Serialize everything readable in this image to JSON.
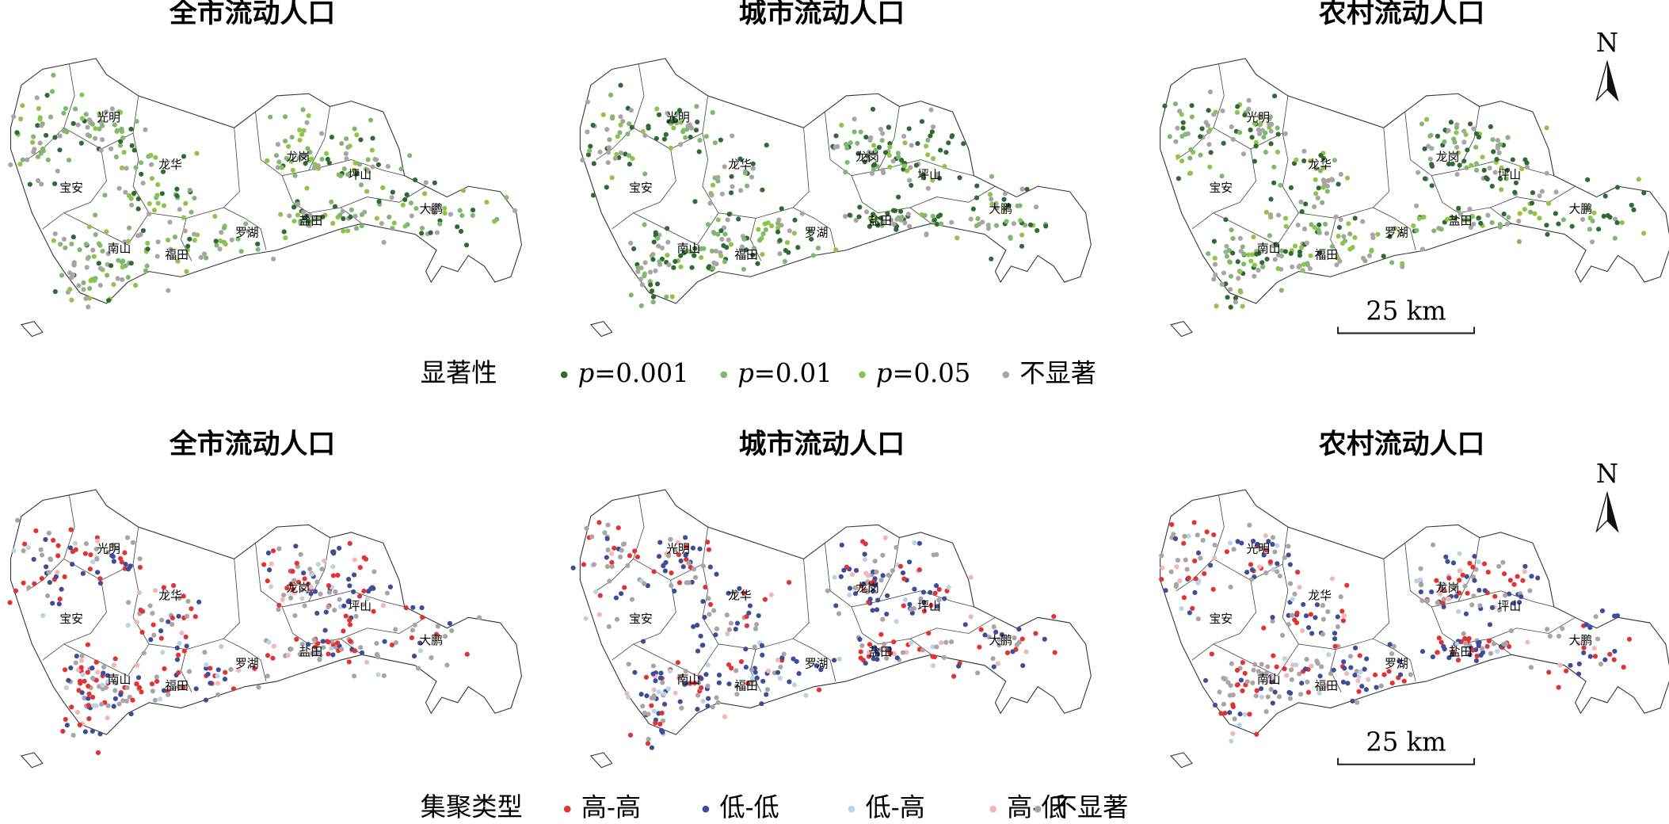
{
  "rows": [
    {
      "maps": [
        {
          "title": "全市流动人口"
        },
        {
          "title": "城市流动人口"
        },
        {
          "title": "农村流动人口"
        }
      ],
      "legend": {
        "title": "显著性",
        "items": [
          {
            "symbol": "p",
            "text": "=0.001",
            "color": "#2f6a33"
          },
          {
            "symbol": "p",
            "text": "=0.01",
            "color": "#80b873"
          },
          {
            "symbol": "p",
            "text": "=0.05",
            "color": "#8cc54a"
          },
          {
            "text": "不显著",
            "color": "#aaa4a7"
          }
        ]
      }
    },
    {
      "maps": [
        {
          "title": "全市流动人口"
        },
        {
          "title": "城市流动人口"
        },
        {
          "title": "农村流动人口"
        }
      ],
      "legend": {
        "title": "集聚类型",
        "items": [
          {
            "text": "高-高",
            "color": "#e23232"
          },
          {
            "text": "低-低",
            "color": "#3c4d9b"
          },
          {
            "text": "低-高",
            "color": "#b9d3e8"
          },
          {
            "text": "高-低",
            "color": "#f1b7b9"
          },
          {
            "text": "不显著",
            "color": "#aaa4a7"
          }
        ]
      }
    }
  ],
  "districts": [
    "光明",
    "龙华",
    "宝安",
    "龙岗",
    "坪山",
    "大鹏",
    "盐田",
    "罗湖",
    "福田",
    "南山"
  ],
  "scale_bar": "25 km",
  "north": "N"
}
